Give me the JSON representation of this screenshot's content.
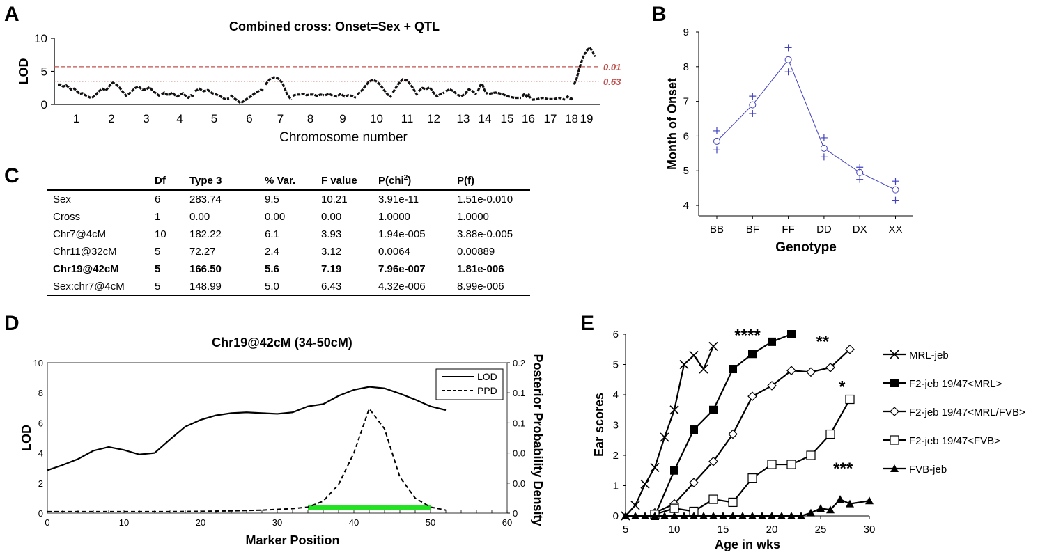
{
  "panels": {
    "a": "A",
    "b": "B",
    "c": "C",
    "d": "D",
    "e": "E"
  },
  "chart_data": [
    {
      "id": "A",
      "type": "line",
      "title": "Combined cross: Onset=Sex + QTL",
      "xlabel": "Chromosome number",
      "ylabel": "LOD",
      "ylim": [
        0,
        10
      ],
      "yticks": [
        "0",
        "5",
        "10"
      ],
      "categories": [
        "1",
        "2",
        "3",
        "4",
        "5",
        "6",
        "7",
        "8",
        "9",
        "10",
        "11",
        "12",
        "13",
        "14",
        "15",
        "16",
        "17",
        "18",
        "19"
      ],
      "thresholds": [
        {
          "label": "0.01",
          "value": 5.7,
          "style": "dashed",
          "color": "#c0504d"
        },
        {
          "label": "0.63",
          "value": 3.5,
          "style": "dotted",
          "color": "#c0504d"
        }
      ],
      "segments": [
        [
          3.0,
          3.0,
          2.7,
          2.9,
          2.6,
          2.2,
          2.4,
          2.0,
          1.6,
          1.7,
          1.4,
          1.2,
          1.0
        ],
        [
          1.0,
          1.4,
          2.0,
          2.4,
          2.1,
          2.8,
          3.3,
          3.0,
          2.5,
          1.8,
          1.2
        ],
        [
          1.5,
          2.0,
          2.5,
          2.7,
          2.2,
          2.3,
          2.6,
          2.0,
          1.6,
          1.2
        ],
        [
          1.5,
          1.8,
          1.5,
          1.5,
          1.8,
          1.4,
          1.2,
          1.5,
          1.7,
          1.3,
          1.0,
          1.4,
          1.2
        ],
        [
          2.0,
          2.4,
          2.0,
          2.2,
          1.7,
          1.5,
          1.2,
          0.8,
          0.9
        ],
        [
          1.4,
          1.0,
          0.6,
          0.2,
          0.5,
          0.9,
          1.2,
          1.6,
          1.9,
          2.2,
          2.1
        ],
        [
          3.0,
          3.8,
          4.1,
          3.9,
          3.2,
          1.6,
          0.7
        ],
        [
          1.3,
          1.5,
          1.5,
          1.6,
          1.4,
          1.5,
          1.5,
          1.3,
          1.5,
          1.4
        ],
        [
          1.4,
          1.6,
          1.3,
          1.2,
          1.6,
          1.2,
          1.4,
          1.3,
          1.0
        ],
        [
          1.5,
          2.0,
          2.7,
          3.4,
          3.7,
          3.5,
          3.0,
          2.2,
          1.5,
          1.1
        ],
        [
          1.8,
          3.0,
          3.8,
          3.6,
          2.6,
          1.4
        ],
        [
          2.0,
          2.5,
          2.3,
          2.6,
          1.8,
          1.2,
          1.6,
          1.8
        ],
        [
          2.0,
          2.3,
          2.0,
          1.5,
          1.2,
          1.6,
          2.3,
          2.0,
          1.5
        ],
        [
          2.0,
          2.6,
          3.1,
          2.9,
          2.2,
          1.8,
          1.6
        ],
        [
          1.6,
          1.8,
          1.6,
          1.2,
          1.0,
          1.0
        ],
        [
          1.2,
          1.5,
          1.6,
          1.2,
          1.0,
          1.5,
          0.9
        ],
        [
          0.7,
          0.8,
          1.0,
          0.8,
          0.8,
          1.0,
          0.7
        ],
        [
          1.0,
          1.2,
          1.0,
          0.9,
          0.9,
          0.7
        ],
        [
          3.0,
          3.9,
          5.4,
          6.6,
          7.6,
          8.2,
          8.6,
          8.1,
          7.2
        ]
      ]
    },
    {
      "id": "B",
      "type": "scatter",
      "xlabel": "Genotype",
      "ylabel": "Month of Onset",
      "categories": [
        "BB",
        "BF",
        "FF",
        "DD",
        "DX",
        "XX"
      ],
      "ylim": [
        3.7,
        9.0
      ],
      "yticks": [
        "4",
        "5",
        "6",
        "7",
        "8",
        "9"
      ],
      "mean": [
        5.85,
        6.9,
        8.2,
        5.65,
        4.95,
        4.45
      ],
      "upper": [
        6.15,
        7.15,
        8.55,
        5.95,
        5.1,
        4.7
      ],
      "lower": [
        5.6,
        6.65,
        7.85,
        5.4,
        4.75,
        4.15
      ],
      "color": "#4040c0"
    },
    {
      "id": "C",
      "type": "table",
      "headers": [
        "",
        "Df",
        "Type 3",
        "% Var.",
        "F value",
        "P(chi",
        "P(f)"
      ],
      "superscript": "2",
      "close_paren": ")",
      "rows": [
        [
          "Sex",
          "6",
          "283.74",
          "9.5",
          "10.21",
          "3.91e-11",
          "1.51e-0.010"
        ],
        [
          "Cross",
          "1",
          "0.00",
          "0.00",
          "0.00",
          "1.0000",
          "1.0000"
        ],
        [
          "Chr7@4cM",
          "10",
          "182.22",
          "6.1",
          "3.93",
          "1.94e-005",
          "3.88e-0.005"
        ],
        [
          "Chr11@32cM",
          "5",
          "72.27",
          "2.4",
          "3.12",
          "0.0064",
          "0.00889"
        ],
        [
          "Chr19@42cM",
          "5",
          "166.50",
          "5.6",
          "7.19",
          "7.96e-007",
          "1.81e-006"
        ],
        [
          "Sex:chr7@4cM",
          "5",
          "148.99",
          "5.0",
          "6.43",
          "4.32e-006",
          "8.99e-006"
        ]
      ],
      "bold_row": 4
    },
    {
      "id": "D",
      "type": "line",
      "title": "Chr19@42cM (34-50cM)",
      "xlabel": "Marker Position",
      "ylabel": "LOD",
      "y2label": "Posterior Probability Density",
      "xlim": [
        0,
        60
      ],
      "xticks": [
        "0",
        "10",
        "20",
        "30",
        "40",
        "50",
        "60"
      ],
      "ylim": [
        0,
        10
      ],
      "yticks": [
        "0",
        "2",
        "4",
        "6",
        "8",
        "10"
      ],
      "y2ticks": [
        "0",
        "0.0",
        "0.0",
        "0.1",
        "0.1",
        "0.2"
      ],
      "legend": [
        "LOD",
        "PPD"
      ],
      "lod": {
        "x": [
          0,
          2,
          4,
          6,
          8,
          10,
          12,
          14,
          16,
          18,
          20,
          22,
          24,
          26,
          28,
          30,
          32,
          34,
          36,
          38,
          40,
          42,
          44,
          46,
          48,
          50,
          52
        ],
        "y": [
          2.85,
          3.2,
          3.6,
          4.15,
          4.4,
          4.2,
          3.9,
          4.0,
          4.9,
          5.75,
          6.2,
          6.5,
          6.65,
          6.7,
          6.65,
          6.6,
          6.7,
          7.1,
          7.25,
          7.8,
          8.2,
          8.4,
          8.3,
          7.95,
          7.55,
          7.1,
          6.85
        ]
      },
      "ppd": {
        "x": [
          0,
          4,
          8,
          12,
          16,
          20,
          24,
          28,
          30,
          32,
          34,
          36,
          38,
          40,
          42,
          44,
          46,
          48,
          50,
          52
        ],
        "y": [
          0.1,
          0.1,
          0.1,
          0.1,
          0.1,
          0.12,
          0.15,
          0.2,
          0.25,
          0.3,
          0.4,
          0.8,
          1.9,
          4.0,
          6.95,
          5.6,
          2.4,
          1.0,
          0.4,
          0.2
        ]
      },
      "interval": [
        34,
        50
      ],
      "interval_color": "#22e222"
    },
    {
      "id": "E",
      "type": "line",
      "xlabel": "Age in wks",
      "ylabel": "Ear scores",
      "xlim": [
        5,
        30
      ],
      "xticks": [
        "5",
        "10",
        "15",
        "20",
        "25",
        "30"
      ],
      "ylim": [
        0,
        6
      ],
      "yticks": [
        "0",
        "1",
        "2",
        "3",
        "4",
        "5",
        "6"
      ],
      "series": [
        {
          "name": "MRL-jeb",
          "marker": "x",
          "x": [
            5,
            6,
            7,
            8,
            9,
            10,
            11,
            12,
            13,
            14
          ],
          "y": [
            0,
            0.35,
            1.05,
            1.6,
            2.6,
            3.5,
            5.0,
            5.3,
            4.85,
            5.6
          ]
        },
        {
          "name": "F2-jeb 19/47<MRL>",
          "marker": "square-filled",
          "x": [
            8,
            10,
            12,
            14,
            16,
            18,
            20,
            22
          ],
          "y": [
            0,
            1.5,
            2.85,
            3.5,
            4.85,
            5.35,
            5.75,
            6.0
          ]
        },
        {
          "name": "F2-jeb 19/47<MRL/FVB>",
          "marker": "diamond",
          "x": [
            8,
            10,
            12,
            14,
            16,
            18,
            20,
            22,
            24,
            26,
            28
          ],
          "y": [
            0.1,
            0.4,
            1.1,
            1.8,
            2.7,
            3.95,
            4.3,
            4.8,
            4.75,
            4.9,
            5.5
          ]
        },
        {
          "name": "F2-jeb 19/47<FVB>",
          "marker": "square-open",
          "x": [
            8,
            10,
            12,
            14,
            16,
            18,
            20,
            22,
            24,
            26,
            28
          ],
          "y": [
            0.05,
            0.25,
            0.15,
            0.55,
            0.45,
            1.25,
            1.7,
            1.7,
            2.0,
            2.7,
            3.85
          ]
        },
        {
          "name": "FVB-jeb",
          "marker": "triangle-filled",
          "x": [
            5,
            6,
            7,
            8,
            9,
            10,
            11,
            12,
            13,
            14,
            15,
            16,
            17,
            18,
            19,
            20,
            21,
            22,
            23,
            24,
            25,
            26,
            27,
            28,
            30
          ],
          "y": [
            0,
            0,
            0,
            0,
            0,
            0,
            0,
            0,
            0,
            0,
            0,
            0,
            0,
            0,
            0,
            0,
            0,
            0,
            0,
            0.1,
            0.25,
            0.2,
            0.55,
            0.4,
            0.5
          ]
        }
      ],
      "annotations": [
        {
          "text": "****",
          "x": 17.5,
          "y": 6.1
        },
        {
          "text": "**",
          "x": 25.2,
          "y": 5.9
        },
        {
          "text": "*",
          "x": 27.2,
          "y": 4.4
        },
        {
          "text": "***",
          "x": 27.3,
          "y": 1.7
        }
      ]
    }
  ]
}
